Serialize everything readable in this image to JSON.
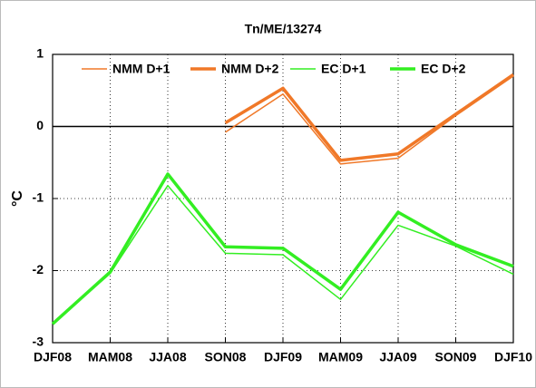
{
  "chart_data": {
    "type": "line",
    "title": "Tn/ME/13274",
    "y_label": "°C",
    "categories": [
      "DJF08",
      "MAM08",
      "JJA08",
      "SON08",
      "DJF09",
      "MAM09",
      "JJA09",
      "SON09",
      "DJF10"
    ],
    "series": [
      {
        "name": "NMM D+1",
        "color": "#f07828",
        "width": 1.5,
        "values": [
          null,
          null,
          null,
          -0.08,
          0.45,
          -0.52,
          -0.44,
          0.15,
          0.7
        ]
      },
      {
        "name": "NMM D+2",
        "color": "#f07828",
        "width": 3.5,
        "values": [
          null,
          null,
          null,
          0.05,
          0.53,
          -0.47,
          -0.38,
          0.17,
          0.72
        ]
      },
      {
        "name": "EC D+1",
        "color": "#33ee22",
        "width": 1.5,
        "values": [
          -2.74,
          -2.04,
          -0.82,
          -1.76,
          -1.78,
          -2.4,
          -1.37,
          -1.66,
          -2.05
        ]
      },
      {
        "name": "EC D+2",
        "color": "#33ee22",
        "width": 3.5,
        "values": [
          -2.74,
          -2.02,
          -0.66,
          -1.67,
          -1.69,
          -2.26,
          -1.19,
          -1.64,
          -1.94
        ]
      }
    ],
    "ylim": [
      -3,
      1
    ],
    "yticks": [
      -3,
      -2,
      -1,
      0,
      1
    ],
    "grid": true,
    "zero_line": true,
    "legend": "top"
  }
}
